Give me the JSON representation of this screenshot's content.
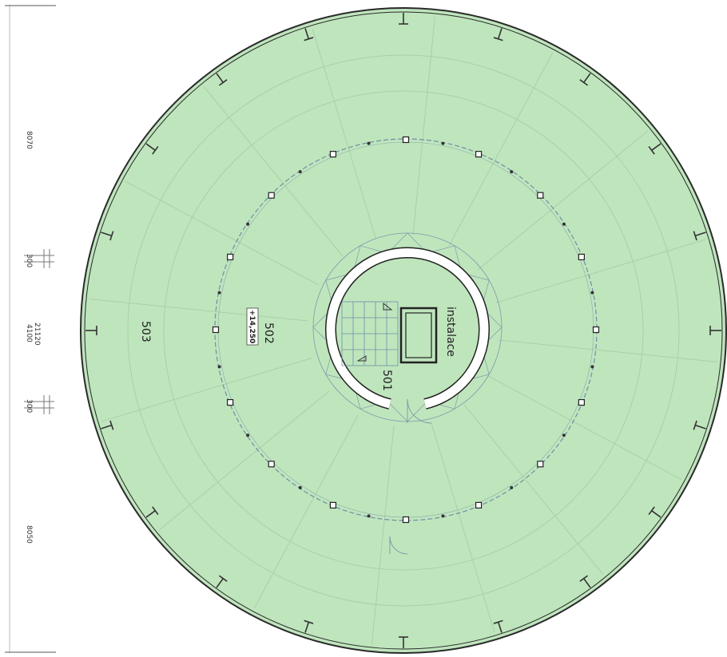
{
  "plan": {
    "room_labels": {
      "outer_ring": "503",
      "middle_ring": "502",
      "core": "501",
      "installation_shaft": "instalace"
    },
    "level_marker": "+14,250",
    "dimensions": {
      "upper_segment": "8070",
      "left_wall_top": "300",
      "middle_span": "4100",
      "overall": "21120",
      "left_wall_bottom": "300",
      "lower_segment": "8050"
    },
    "colors": {
      "floor_fill": "#bfe5bd",
      "outer_wall": "#2a2a2a",
      "core_wall": "#ffffff",
      "line_work": "#6f8fa6"
    },
    "icons": [
      "stair-up-arrow-icon",
      "stair-down-arrow-icon"
    ]
  }
}
